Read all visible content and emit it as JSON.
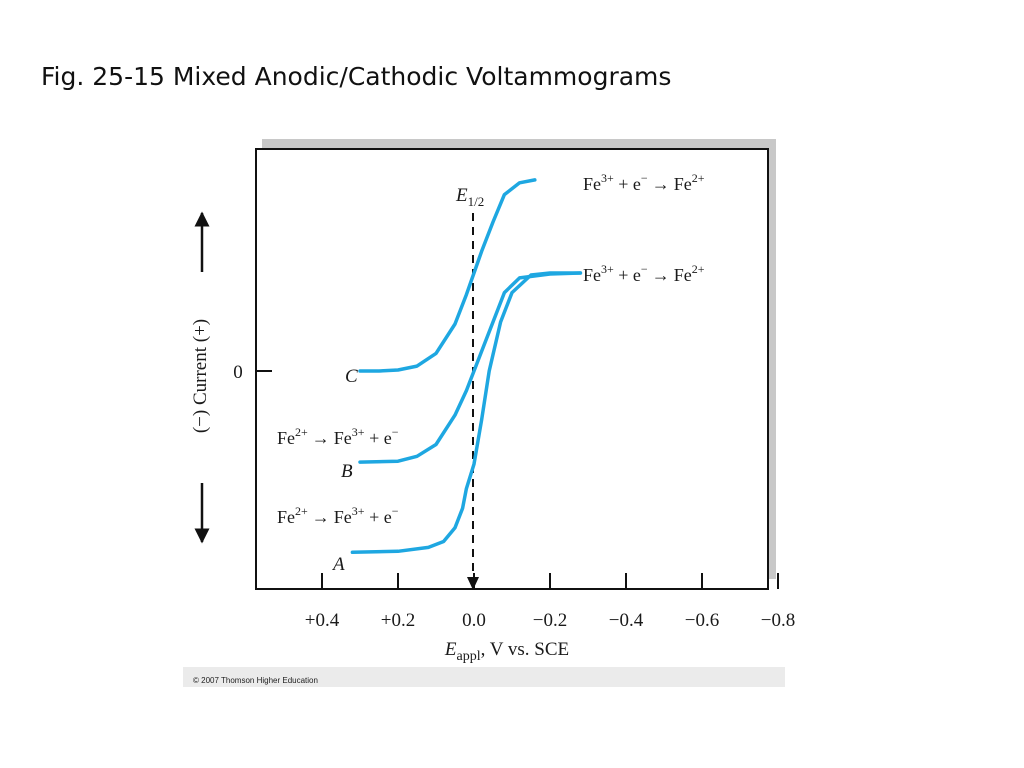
{
  "slide": {
    "title": "Fig. 25-15 Mixed Anodic/Cathodic Voltammograms",
    "copyright": "© 2007 Thomson Higher Education"
  },
  "chart_data": {
    "type": "line",
    "title": "",
    "xlabel": {
      "main": "E",
      "sub": "appl",
      "rest": ", V vs. SCE"
    },
    "ylabel": "(−) Current (+)",
    "x_direction": "reversed",
    "xlim": [
      0.4,
      -0.8
    ],
    "x_ticks": [
      0.4,
      0.2,
      0.0,
      -0.2,
      -0.4,
      -0.6,
      -0.8
    ],
    "x_tick_labels": [
      "+0.4",
      "+0.2",
      "0.0",
      "−0.2",
      "−0.4",
      "−0.6",
      "−0.8"
    ],
    "y_zero_label": "0",
    "half_wave_potential": {
      "x": 0.0,
      "label_main": "E",
      "label_sub": "1/2"
    },
    "line_color": "#1ea7e1",
    "series": [
      {
        "name": "C",
        "label": "C",
        "x": [
          0.3,
          0.25,
          0.2,
          0.15,
          0.1,
          0.05,
          0.02,
          0.0,
          -0.02,
          -0.05,
          -0.08,
          -0.12,
          -0.16
        ],
        "y": [
          0.0,
          0.0,
          0.01,
          0.05,
          0.18,
          0.48,
          0.78,
          1.0,
          1.22,
          1.52,
          1.8,
          1.92,
          1.95
        ],
        "annotation": {
          "reactant": "Fe",
          "r_sup": "2+",
          "product": "Fe",
          "p_sup": "3+",
          "tail": " + e",
          "e_sup": "−",
          "arrow": "→"
        }
      },
      {
        "name": "B",
        "label": "B",
        "x": [
          0.3,
          0.2,
          0.15,
          0.1,
          0.05,
          0.02,
          0.0,
          -0.02,
          -0.05,
          -0.08,
          -0.12,
          -0.2,
          -0.28
        ],
        "y": [
          -0.93,
          -0.92,
          -0.87,
          -0.75,
          -0.45,
          -0.2,
          0.0,
          0.2,
          0.5,
          0.8,
          0.95,
          0.99,
          1.0
        ],
        "annotation": {
          "reactant": "Fe",
          "r_sup": "3+",
          "product": "Fe",
          "p_sup": "2+",
          "tail": " + e",
          "e_sup": "−",
          "arrow": "→"
        }
      },
      {
        "name": "A",
        "label": "A",
        "x": [
          0.32,
          0.2,
          0.12,
          0.08,
          0.05,
          0.03,
          0.02,
          0.0,
          -0.02,
          -0.04,
          -0.07,
          -0.1,
          -0.15,
          -0.2,
          -0.28
        ],
        "y": [
          -1.85,
          -1.84,
          -1.8,
          -1.74,
          -1.6,
          -1.4,
          -1.2,
          -0.95,
          -0.5,
          0.0,
          0.5,
          0.8,
          0.98,
          1.0,
          1.0
        ],
        "annotation": {
          "reactant": "Fe",
          "r_sup": "3+",
          "product": "Fe",
          "p_sup": "2+",
          "tail": " + e",
          "e_sup": "−",
          "arrow": "→"
        }
      }
    ]
  }
}
